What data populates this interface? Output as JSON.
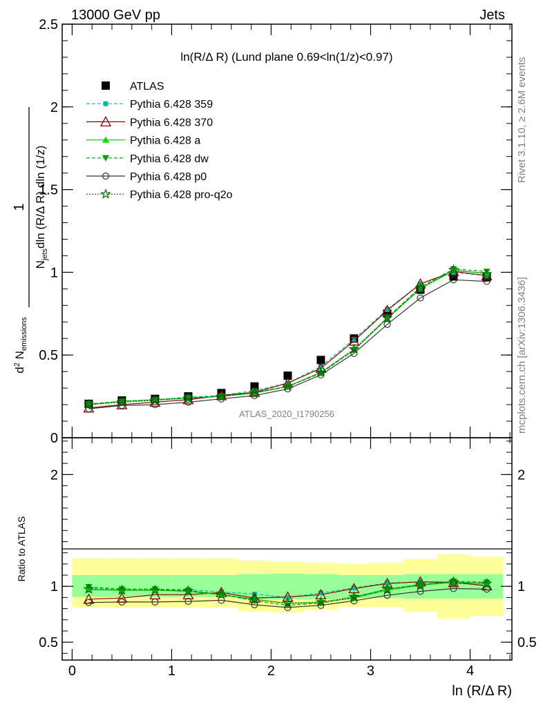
{
  "header": {
    "left": "13000 GeV pp",
    "right": "Jets"
  },
  "plot_title": "ln(R/Δ R) (Lund plane 0.69<ln(1/z)<0.97)",
  "side_labels": {
    "rivet": "Rivet 3.1.10, ≥ 2.6M events",
    "mcplots": "mcplots.cern.ch [arXiv:1306.3436]"
  },
  "watermark": "ATLAS_2020_I1790256",
  "ylabel_main": "1/N_jets d²N_emissions / dln(R/ΔR) dln(1/z)",
  "ylabel_ratio": "Ratio to ATLAS",
  "xlabel": "ln (R/Δ R)",
  "colors": {
    "atlas": "#000000",
    "p359": "#00bb99",
    "p370": "#8b0000",
    "pa": "#00dd00",
    "pdw": "#009900",
    "pp0": "#333333",
    "pq2o": "#006600",
    "band_inner": "#99ff99",
    "band_outer": "#ffff99"
  },
  "chart_data": [
    {
      "type": "scatter",
      "panel": "main",
      "x": [
        0.167,
        0.5,
        0.833,
        1.167,
        1.5,
        1.833,
        2.167,
        2.5,
        2.833,
        3.167,
        3.5,
        3.833,
        4.167
      ],
      "xlim": [
        -0.1,
        4.42
      ],
      "ylim": [
        0,
        2.5
      ],
      "yticks": [
        0,
        0.5,
        1,
        1.5,
        2,
        2.5
      ],
      "yticklabels": [
        "0",
        "0.5",
        "1",
        "1.5",
        "2",
        "2.5"
      ],
      "xticks": [
        0,
        1,
        2,
        3,
        4
      ],
      "legend_position": "top-left",
      "series": [
        {
          "key": "atlas",
          "name": "ATLAS",
          "values": [
            0.205,
            0.225,
            0.235,
            0.25,
            0.27,
            0.31,
            0.375,
            0.47,
            0.6,
            0.75,
            0.895,
            0.975,
            0.97
          ]
        },
        {
          "key": "p359",
          "name": "Pythia 6.428 359",
          "values": [
            0.2,
            0.22,
            0.23,
            0.245,
            0.255,
            0.285,
            0.33,
            0.43,
            0.595,
            0.775,
            0.93,
            1.0,
            0.98
          ]
        },
        {
          "key": "p370",
          "name": "Pythia 6.428 370",
          "values": [
            0.18,
            0.2,
            0.215,
            0.23,
            0.255,
            0.275,
            0.33,
            0.42,
            0.585,
            0.77,
            0.93,
            1.005,
            0.98
          ]
        },
        {
          "key": "pa",
          "name": "Pythia 6.428 a",
          "values": [
            0.2,
            0.22,
            0.23,
            0.24,
            0.25,
            0.27,
            0.31,
            0.395,
            0.53,
            0.72,
            0.9,
            1.01,
            0.995
          ]
        },
        {
          "key": "pdw",
          "name": "Pythia 6.428 dw",
          "values": [
            0.205,
            0.22,
            0.23,
            0.24,
            0.25,
            0.275,
            0.31,
            0.39,
            0.53,
            0.725,
            0.91,
            1.02,
            1.005
          ]
        },
        {
          "key": "pp0",
          "name": "Pythia 6.428 p0",
          "values": [
            0.175,
            0.195,
            0.2,
            0.215,
            0.235,
            0.255,
            0.295,
            0.38,
            0.51,
            0.685,
            0.845,
            0.955,
            0.945
          ]
        },
        {
          "key": "pq2o",
          "name": "Pythia 6.428 pro-q2o",
          "values": [
            0.2,
            0.215,
            0.225,
            0.24,
            0.25,
            0.27,
            0.31,
            0.395,
            0.535,
            0.725,
            0.905,
            1.015,
            0.99
          ]
        }
      ]
    },
    {
      "type": "scatter",
      "panel": "ratio",
      "x": [
        0.167,
        0.5,
        0.833,
        1.167,
        1.5,
        1.833,
        2.167,
        2.5,
        2.833,
        3.167,
        3.5,
        3.833,
        4.167
      ],
      "xlim": [
        -0.1,
        4.42
      ],
      "ylim": [
        0.34,
        2.33
      ],
      "yticks": [
        0.5,
        1,
        2
      ],
      "yticklabels": [
        "0.5",
        "1",
        "2"
      ],
      "xticks": [
        0,
        1,
        2,
        3,
        4
      ],
      "xticklabels": [
        "0",
        "1",
        "2",
        "3",
        "4"
      ],
      "bands": {
        "x_edges": [
          0,
          0.333,
          0.667,
          1.0,
          1.333,
          1.667,
          2.0,
          2.333,
          2.667,
          3.0,
          3.333,
          3.667,
          4.0,
          4.333
        ],
        "inner_lo": [
          0.905,
          0.905,
          0.905,
          0.905,
          0.905,
          0.885,
          0.885,
          0.885,
          0.895,
          0.895,
          0.89,
          0.89,
          0.89
        ],
        "inner_hi": [
          1.1,
          1.1,
          1.1,
          1.1,
          1.1,
          1.11,
          1.115,
          1.11,
          1.1,
          1.1,
          1.11,
          1.11,
          1.11
        ],
        "outer_lo": [
          0.81,
          0.81,
          0.81,
          0.81,
          0.81,
          0.775,
          0.765,
          0.79,
          0.815,
          0.815,
          0.77,
          0.71,
          0.735
        ],
        "outer_hi": [
          1.25,
          1.25,
          1.25,
          1.25,
          1.25,
          1.23,
          1.22,
          1.21,
          1.2,
          1.21,
          1.245,
          1.285,
          1.265
        ]
      },
      "series": [
        {
          "key": "p359",
          "name": "Pythia 6.428 359",
          "values": [
            0.98,
            0.975,
            0.975,
            0.97,
            0.95,
            0.93,
            0.9,
            0.94,
            0.985,
            1.03,
            1.04,
            1.03,
            1.01
          ]
        },
        {
          "key": "p370",
          "name": "Pythia 6.428 370",
          "values": [
            0.885,
            0.895,
            0.925,
            0.925,
            0.945,
            0.895,
            0.905,
            0.925,
            0.98,
            1.025,
            1.04,
            1.035,
            1.005
          ]
        },
        {
          "key": "pa",
          "name": "Pythia 6.428 a",
          "values": [
            0.97,
            0.965,
            0.965,
            0.955,
            0.925,
            0.885,
            0.845,
            0.855,
            0.895,
            0.965,
            1.01,
            1.035,
            1.025
          ]
        },
        {
          "key": "pdw",
          "name": "Pythia 6.428 dw",
          "values": [
            0.995,
            0.975,
            0.975,
            0.96,
            0.93,
            0.87,
            0.83,
            0.85,
            0.9,
            0.975,
            1.015,
            1.045,
            1.035
          ]
        },
        {
          "key": "pp0",
          "name": "Pythia 6.428 p0",
          "values": [
            0.855,
            0.86,
            0.86,
            0.865,
            0.875,
            0.835,
            0.81,
            0.83,
            0.87,
            0.92,
            0.955,
            0.98,
            0.975
          ]
        },
        {
          "key": "pq2o",
          "name": "Pythia 6.428 pro-q2o",
          "values": [
            0.975,
            0.965,
            0.965,
            0.96,
            0.925,
            0.88,
            0.85,
            0.86,
            0.905,
            0.975,
            1.015,
            1.04,
            1.025
          ]
        }
      ]
    }
  ]
}
